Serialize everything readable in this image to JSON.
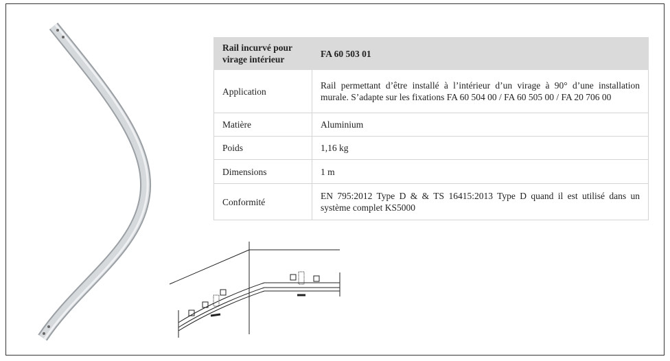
{
  "table": {
    "header": [
      "Rail incurvé pour virage intérieur",
      "FA 60 503 01"
    ],
    "rows": [
      [
        "Application",
        "Rail permettant d’être installé à l’intérieur d’un virage à 90° d’une installation murale. S’adapte sur les fixations FA 60 504 00 / FA 60 505 00 / FA 20 706 00"
      ],
      [
        "Matière",
        "Aluminium"
      ],
      [
        "Poids",
        "1,16 kg"
      ],
      [
        "Dimensions",
        "1 m"
      ],
      [
        "Conformité",
        "EN 795:2012 Type D & & TS 16415:2013 Type D quand il est utilisé dans un système complet KS5000"
      ]
    ]
  }
}
